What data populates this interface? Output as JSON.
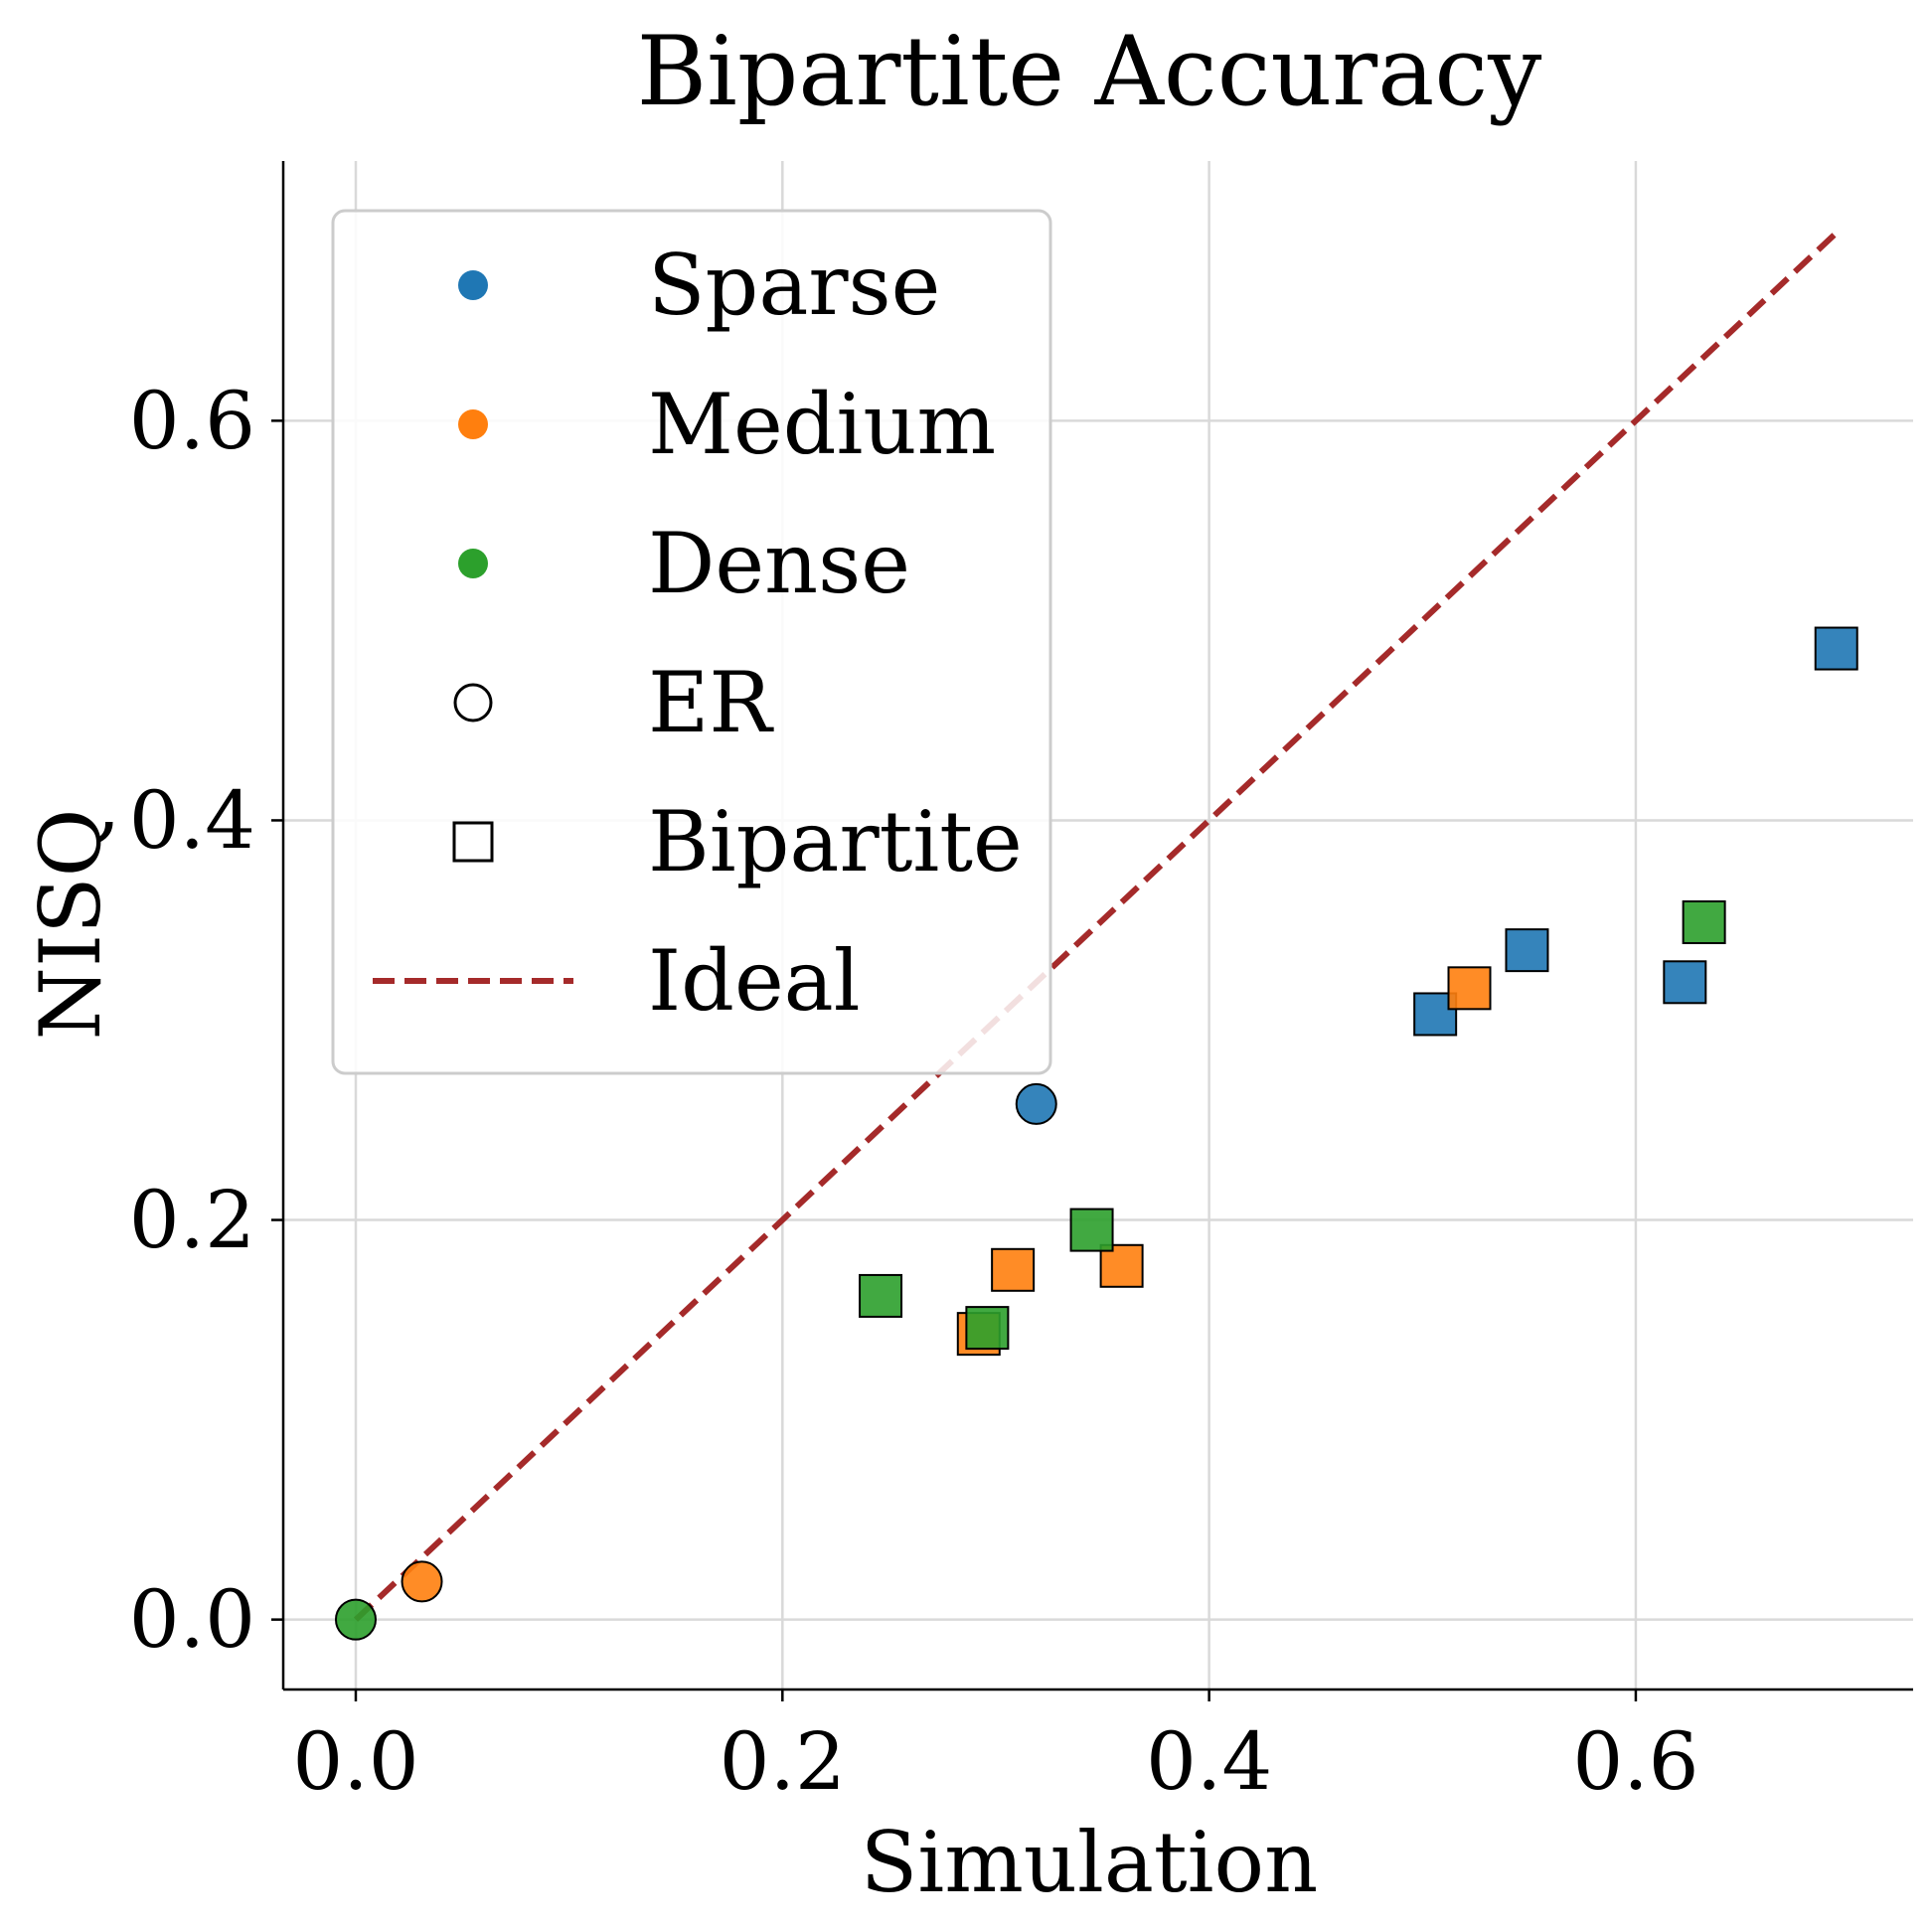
{
  "chart_data": {
    "type": "scatter",
    "title": "Bipartite Accuracy",
    "xlabel": "Simulation",
    "ylabel": "NISQ",
    "xlim": [
      -0.034,
      0.73
    ],
    "ylim": [
      -0.035,
      0.73
    ],
    "xticks": [
      0.0,
      0.2,
      0.4,
      0.6
    ],
    "yticks": [
      0.0,
      0.2,
      0.4,
      0.6
    ],
    "xtick_labels": [
      "0.0",
      "0.2",
      "0.4",
      "0.6"
    ],
    "ytick_labels": [
      "0.0",
      "0.2",
      "0.4",
      "0.6"
    ],
    "grid": true,
    "legend_position": "upper-left",
    "colors": {
      "Sparse": "#1f77b4",
      "Medium": "#ff7f0e",
      "Dense": "#2ca02c",
      "Ideal": "#a52a2a"
    },
    "ideal_line": {
      "x": [
        0.0,
        0.694
      ],
      "y": [
        0.0,
        0.694
      ]
    },
    "series": [
      {
        "density": "Sparse",
        "graph": "ER",
        "marker": "circle",
        "points": [
          [
            0.319,
            0.258
          ]
        ]
      },
      {
        "density": "Medium",
        "graph": "ER",
        "marker": "circle",
        "points": [
          [
            0.031,
            0.019
          ]
        ]
      },
      {
        "density": "Dense",
        "graph": "ER",
        "marker": "circle",
        "points": [
          [
            0.0,
            0.0
          ]
        ]
      },
      {
        "density": "Sparse",
        "graph": "Bipartite",
        "marker": "square",
        "points": [
          [
            0.506,
            0.303
          ],
          [
            0.549,
            0.335
          ],
          [
            0.623,
            0.319
          ],
          [
            0.694,
            0.486
          ]
        ]
      },
      {
        "density": "Medium",
        "graph": "Bipartite",
        "marker": "square",
        "points": [
          [
            0.292,
            0.143
          ],
          [
            0.308,
            0.175
          ],
          [
            0.359,
            0.177
          ],
          [
            0.522,
            0.316
          ]
        ]
      },
      {
        "density": "Dense",
        "graph": "Bipartite",
        "marker": "square",
        "points": [
          [
            0.246,
            0.162
          ],
          [
            0.296,
            0.146
          ],
          [
            0.345,
            0.195
          ],
          [
            0.632,
            0.349
          ]
        ]
      }
    ],
    "legend": [
      {
        "label": "Sparse",
        "symbol": "dot",
        "color": "#1f77b4"
      },
      {
        "label": "Medium",
        "symbol": "dot",
        "color": "#ff7f0e"
      },
      {
        "label": "Dense",
        "symbol": "dot",
        "color": "#2ca02c"
      },
      {
        "label": "ER",
        "symbol": "circle-outline",
        "color": "#000000"
      },
      {
        "label": "Bipartite",
        "symbol": "square-outline",
        "color": "#000000"
      },
      {
        "label": "Ideal",
        "symbol": "dashed-line",
        "color": "#a52a2a"
      }
    ]
  }
}
